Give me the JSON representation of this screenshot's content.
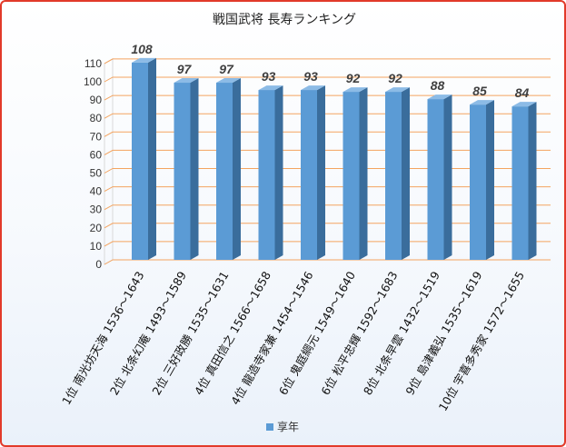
{
  "chart_data": {
    "type": "bar",
    "title": "戦国武将 長寿ランキング",
    "categories": [
      "1位 南光坊天海 1536～1643",
      "2位 北条幻庵 1493～1589",
      "2位 三好政勝 1535～1631",
      "4位 真田信之 1566～1658",
      "4位 龍造寺家兼 1454～1546",
      "6位 鬼庭綱元 1549～1640",
      "6位 松平忠輝 1592～1683",
      "8位 北条早雲 1432～1519",
      "9位 島津義弘 1535～1619",
      "10位 宇喜多秀家 1572～1655"
    ],
    "series": [
      {
        "name": "享年",
        "values": [
          108,
          97,
          97,
          93,
          93,
          92,
          92,
          88,
          85,
          84
        ]
      }
    ],
    "ylim": [
      0,
      110
    ],
    "yticks": [
      0,
      10,
      20,
      30,
      40,
      50,
      60,
      70,
      80,
      90,
      100,
      110
    ],
    "grid": true,
    "legend": "bottom",
    "colors": {
      "bar_front": "#5b9bd5",
      "bar_side": "#3a6d9c",
      "bar_top": "#8cbbe6",
      "grid": "#f4a460",
      "frame": "#e23a2a"
    }
  }
}
